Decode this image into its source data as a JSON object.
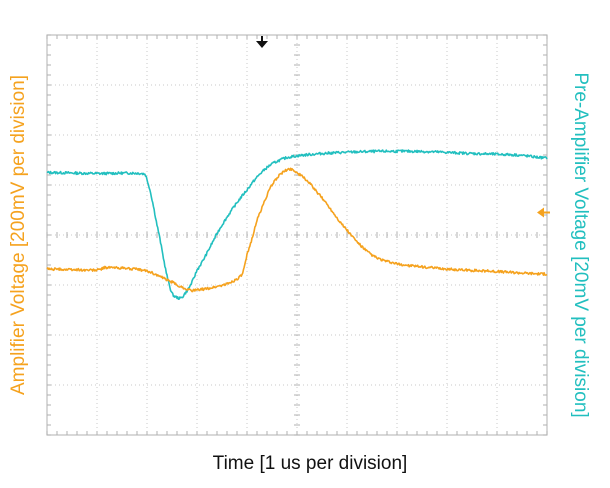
{
  "chart_data": {
    "type": "line",
    "title": "",
    "xlabel": "Time [1 us per division]",
    "ylabel_left": "Amplifier Voltage [200mV per division]",
    "ylabel_right": "Pre-Amplifier Voltage [20mV per division]",
    "grid": true,
    "divisions": {
      "x": 10,
      "y": 8
    },
    "xlim": [
      0,
      10
    ],
    "ylim": [
      0,
      8
    ],
    "series": [
      {
        "name": "",
        "color": "#22bfbf",
        "axis": "right",
        "points": [
          [
            0,
            5.25
          ],
          [
            1,
            5.23
          ],
          [
            1.9,
            5.23
          ],
          [
            2.0,
            5.1
          ],
          [
            2.2,
            4.2
          ],
          [
            2.45,
            3.0
          ],
          [
            2.6,
            2.75
          ],
          [
            2.75,
            2.82
          ],
          [
            3.0,
            3.3
          ],
          [
            3.5,
            4.2
          ],
          [
            4.0,
            4.9
          ],
          [
            4.4,
            5.35
          ],
          [
            4.8,
            5.55
          ],
          [
            5.5,
            5.63
          ],
          [
            6.5,
            5.67
          ],
          [
            7.5,
            5.67
          ],
          [
            8.5,
            5.63
          ],
          [
            9.4,
            5.6
          ],
          [
            10,
            5.54
          ]
        ]
      },
      {
        "name": "",
        "color": "#f5a21e",
        "axis": "left",
        "points": [
          [
            0,
            3.32
          ],
          [
            1,
            3.3
          ],
          [
            1.2,
            3.35
          ],
          [
            2.0,
            3.28
          ],
          [
            2.5,
            3.06
          ],
          [
            2.8,
            2.92
          ],
          [
            3.0,
            2.9
          ],
          [
            3.6,
            3.02
          ],
          [
            3.9,
            3.2
          ],
          [
            4.0,
            3.6
          ],
          [
            4.2,
            4.3
          ],
          [
            4.5,
            5.0
          ],
          [
            4.8,
            5.3
          ],
          [
            5.0,
            5.24
          ],
          [
            5.4,
            4.85
          ],
          [
            6.0,
            4.1
          ],
          [
            6.5,
            3.6
          ],
          [
            7.0,
            3.42
          ],
          [
            8,
            3.32
          ],
          [
            9,
            3.27
          ],
          [
            10,
            3.22
          ]
        ]
      }
    ],
    "markers": {
      "trigger_time": 4.3,
      "ground_level": 4.45
    }
  }
}
